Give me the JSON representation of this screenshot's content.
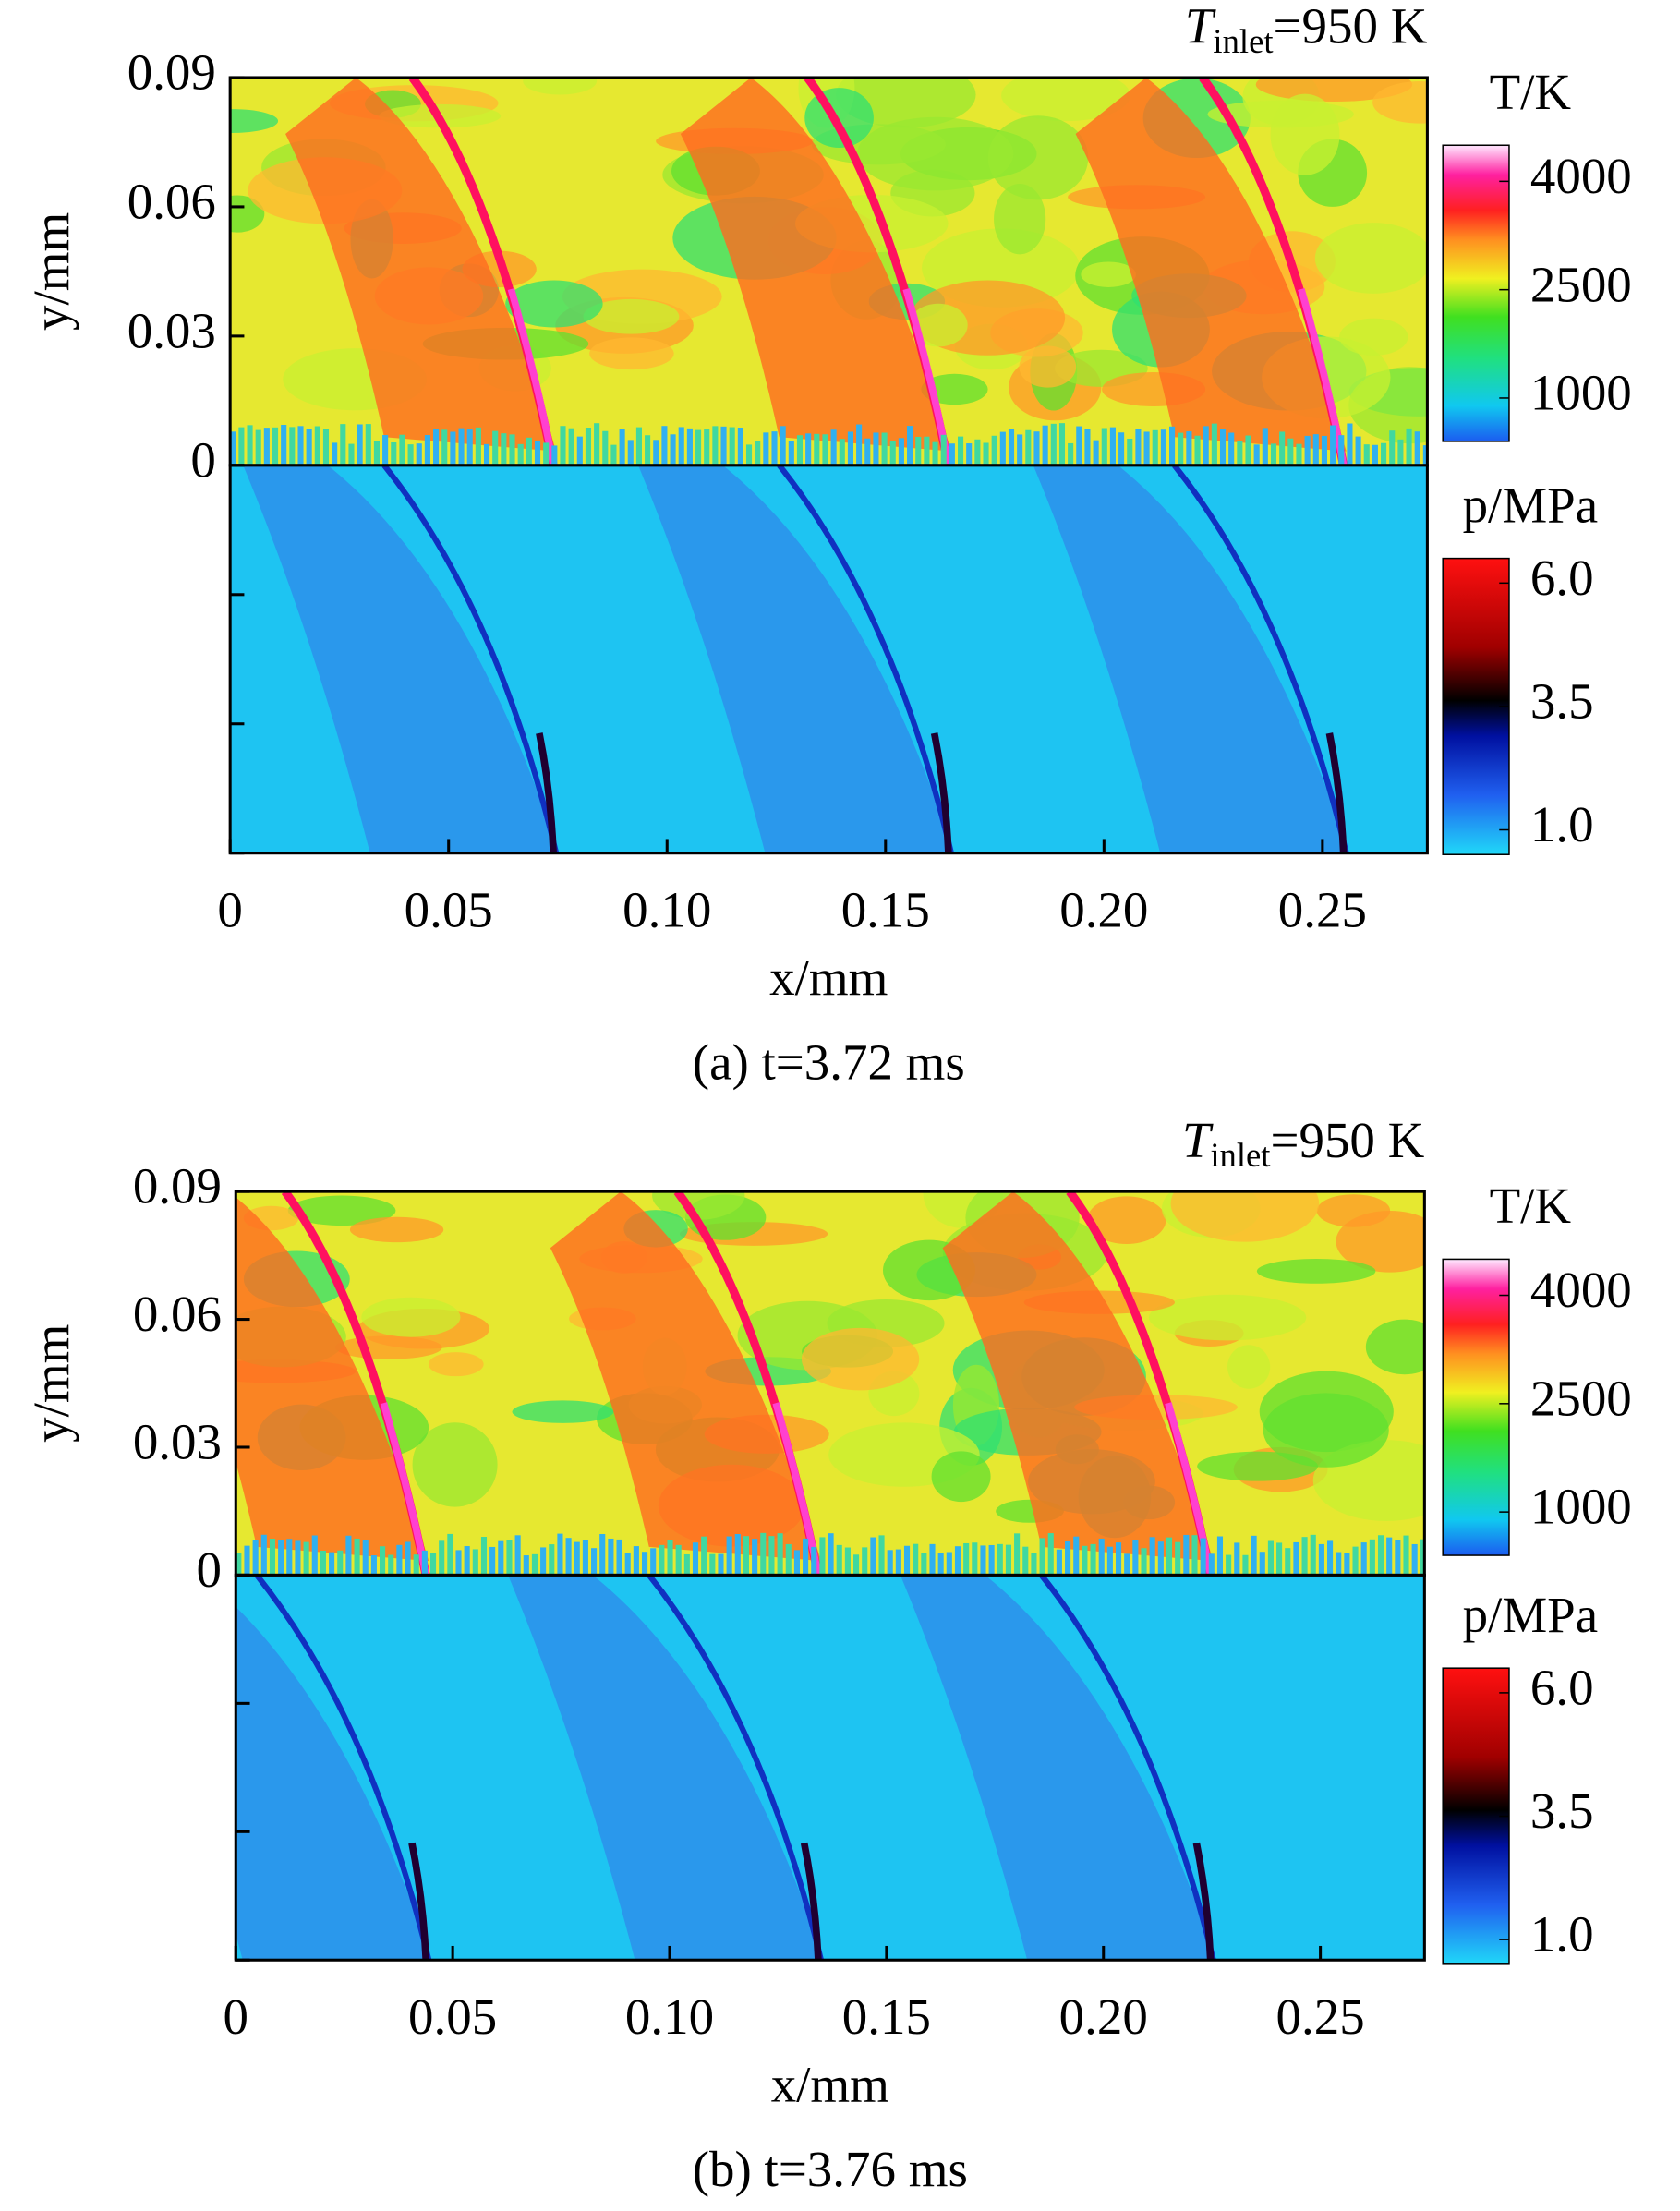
{
  "chart_data": [
    {
      "type": "contour",
      "annotation": {
        "symbol": "T",
        "subscript": "inlet",
        "text": "=950 K"
      },
      "caption": "(a) t=3.72 ms",
      "xlabel": "x/mm",
      "ylabel": "y/mm",
      "xlim": [
        0,
        0.274
      ],
      "xticks": [
        0,
        0.05,
        {
          "value": 0.1,
          "label": "0.10"
        },
        0.15,
        {
          "value": 0.2,
          "label": "0.20"
        },
        0.25
      ],
      "ylim": [
        0,
        0.09
      ],
      "yticks": [
        0,
        0.03,
        0.06,
        0.09
      ],
      "colorbars": [
        {
          "label": "T/K",
          "lim": [
            400,
            4500
          ],
          "ticks": [
            1000,
            2500,
            4000
          ]
        },
        {
          "label": "p/MPa",
          "lim": [
            0.5,
            6.5
          ],
          "ticks": [
            {
              "value": 1,
              "label": "1.0"
            },
            3.5,
            {
              "value": 6,
              "label": "6.0"
            }
          ]
        }
      ]
    },
    {
      "type": "contour",
      "annotation": {
        "symbol": "T",
        "subscript": "inlet",
        "text": "=950 K"
      },
      "caption": "(b) t=3.76 ms",
      "xlabel": "x/mm",
      "ylabel": "y/mm",
      "xlim": [
        0,
        0.274
      ],
      "xticks": [
        0,
        0.05,
        {
          "value": 0.1,
          "label": "0.10"
        },
        0.15,
        {
          "value": 0.2,
          "label": "0.20"
        },
        0.25
      ],
      "ylim": [
        0,
        0.09
      ],
      "yticks": [
        0,
        0.03,
        0.06,
        0.09
      ],
      "colorbars": [
        {
          "label": "T/K",
          "lim": [
            400,
            4500
          ],
          "ticks": [
            1000,
            2500,
            4000
          ]
        },
        {
          "label": "p/MPa",
          "lim": [
            0.5,
            6.5
          ],
          "ticks": [
            {
              "value": 1,
              "label": "1.0"
            },
            3.5,
            {
              "value": 6,
              "label": "6.0"
            }
          ]
        }
      ]
    }
  ]
}
